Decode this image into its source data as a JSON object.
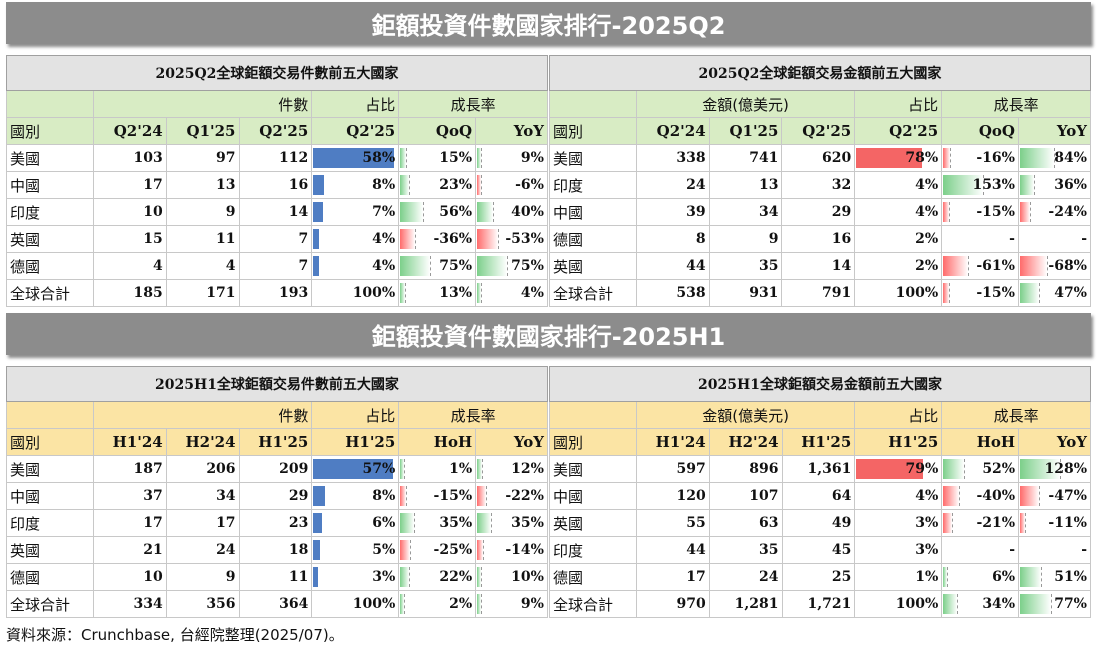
{
  "q2": {
    "title": "鉅額投資件數國家排行-2025Q2",
    "left": {
      "caption": "2025Q2全球鉅額交易件數前五大國家",
      "group_count": "件數",
      "group_share": "占比",
      "group_growth": "成長率",
      "col_country": "國別",
      "cols": [
        "Q2'24",
        "Q1'25",
        "Q2'25",
        "Q2'25",
        "QoQ",
        "YoY"
      ],
      "rows": [
        {
          "name": "美國",
          "v1": "103",
          "v2": "97",
          "v3": "112",
          "share": "58%",
          "s": 0.58,
          "g1": "15%",
          "g1n": 0.15,
          "g2": "9%",
          "g2n": 0.09
        },
        {
          "name": "中國",
          "v1": "17",
          "v2": "13",
          "v3": "16",
          "share": "8%",
          "s": 0.08,
          "g1": "23%",
          "g1n": 0.23,
          "g2": "-6%",
          "g2n": -0.06
        },
        {
          "name": "印度",
          "v1": "10",
          "v2": "9",
          "v3": "14",
          "share": "7%",
          "s": 0.07,
          "g1": "56%",
          "g1n": 0.56,
          "g2": "40%",
          "g2n": 0.4
        },
        {
          "name": "英國",
          "v1": "15",
          "v2": "11",
          "v3": "7",
          "share": "4%",
          "s": 0.04,
          "g1": "-36%",
          "g1n": -0.36,
          "g2": "-53%",
          "g2n": -0.53
        },
        {
          "name": "德國",
          "v1": "4",
          "v2": "4",
          "v3": "7",
          "share": "4%",
          "s": 0.04,
          "g1": "75%",
          "g1n": 0.75,
          "g2": "75%",
          "g2n": 0.75
        },
        {
          "name": "全球合計",
          "v1": "185",
          "v2": "171",
          "v3": "193",
          "share": "100%",
          "s": 0,
          "g1": "13%",
          "g1n": 0.13,
          "g2": "4%",
          "g2n": 0.04
        }
      ]
    },
    "right": {
      "caption": "2025Q2全球鉅額交易金額前五大國家",
      "group_count": "金額(億美元)",
      "group_share": "占比",
      "group_growth": "成長率",
      "col_country": "國別",
      "cols": [
        "Q2'24",
        "Q1'25",
        "Q2'25",
        "Q2'25",
        "QoQ",
        "YoY"
      ],
      "rows": [
        {
          "name": "美國",
          "v1": "338",
          "v2": "741",
          "v3": "620",
          "share": "78%",
          "s": 0.78,
          "g1": "-16%",
          "g1n": -0.16,
          "g2": "84%",
          "g2n": 0.84
        },
        {
          "name": "印度",
          "v1": "24",
          "v2": "13",
          "v3": "32",
          "share": "4%",
          "s": 0,
          "g1": "153%",
          "g1n": 1.53,
          "g2": "36%",
          "g2n": 0.36
        },
        {
          "name": "中國",
          "v1": "39",
          "v2": "34",
          "v3": "29",
          "share": "4%",
          "s": 0,
          "g1": "-15%",
          "g1n": -0.15,
          "g2": "-24%",
          "g2n": -0.24
        },
        {
          "name": "德國",
          "v1": "8",
          "v2": "9",
          "v3": "16",
          "share": "2%",
          "s": 0,
          "g1": "-",
          "g1n": 0,
          "g2": "-",
          "g2n": 0
        },
        {
          "name": "英國",
          "v1": "44",
          "v2": "35",
          "v3": "14",
          "share": "2%",
          "s": 0,
          "g1": "-61%",
          "g1n": -0.61,
          "g2": "-68%",
          "g2n": -0.68
        },
        {
          "name": "全球合計",
          "v1": "538",
          "v2": "931",
          "v3": "791",
          "share": "100%",
          "s": 0,
          "g1": "-15%",
          "g1n": -0.15,
          "g2": "47%",
          "g2n": 0.47
        }
      ]
    }
  },
  "h1": {
    "title": "鉅額投資件數國家排行-2025H1",
    "left": {
      "caption": "2025H1全球鉅額交易件數前五大國家",
      "group_count": "件數",
      "group_share": "占比",
      "group_growth": "成長率",
      "col_country": "國別",
      "cols": [
        "H1'24",
        "H2'24",
        "H1'25",
        "H1'25",
        "HoH",
        "YoY"
      ],
      "rows": [
        {
          "name": "美國",
          "v1": "187",
          "v2": "206",
          "v3": "209",
          "share": "57%",
          "s": 0.57,
          "g1": "1%",
          "g1n": 0.01,
          "g2": "12%",
          "g2n": 0.12
        },
        {
          "name": "中國",
          "v1": "37",
          "v2": "34",
          "v3": "29",
          "share": "8%",
          "s": 0.08,
          "g1": "-15%",
          "g1n": -0.15,
          "g2": "-22%",
          "g2n": -0.22
        },
        {
          "name": "印度",
          "v1": "17",
          "v2": "17",
          "v3": "23",
          "share": "6%",
          "s": 0.06,
          "g1": "35%",
          "g1n": 0.35,
          "g2": "35%",
          "g2n": 0.35
        },
        {
          "name": "英國",
          "v1": "21",
          "v2": "24",
          "v3": "18",
          "share": "5%",
          "s": 0.05,
          "g1": "-25%",
          "g1n": -0.25,
          "g2": "-14%",
          "g2n": -0.14
        },
        {
          "name": "德國",
          "v1": "10",
          "v2": "9",
          "v3": "11",
          "share": "3%",
          "s": 0.03,
          "g1": "22%",
          "g1n": 0.22,
          "g2": "10%",
          "g2n": 0.1
        },
        {
          "name": "全球合計",
          "v1": "334",
          "v2": "356",
          "v3": "364",
          "share": "100%",
          "s": 0,
          "g1": "2%",
          "g1n": 0.02,
          "g2": "9%",
          "g2n": 0.09
        }
      ]
    },
    "right": {
      "caption": "2025H1全球鉅額交易金額前五大國家",
      "group_count": "金額(億美元)",
      "group_share": "占比",
      "group_growth": "成長率",
      "col_country": "國別",
      "cols": [
        "H1'24",
        "H2'24",
        "H1'25",
        "H1'25",
        "HoH",
        "YoY"
      ],
      "rows": [
        {
          "name": "美國",
          "v1": "597",
          "v2": "896",
          "v3": "1,361",
          "share": "79%",
          "s": 0.79,
          "g1": "52%",
          "g1n": 0.52,
          "g2": "128%",
          "g2n": 1.28
        },
        {
          "name": "中國",
          "v1": "120",
          "v2": "107",
          "v3": "64",
          "share": "4%",
          "s": 0,
          "g1": "-40%",
          "g1n": -0.4,
          "g2": "-47%",
          "g2n": -0.47
        },
        {
          "name": "英國",
          "v1": "55",
          "v2": "63",
          "v3": "49",
          "share": "3%",
          "s": 0,
          "g1": "-21%",
          "g1n": -0.21,
          "g2": "-11%",
          "g2n": -0.11
        },
        {
          "name": "印度",
          "v1": "44",
          "v2": "35",
          "v3": "45",
          "share": "3%",
          "s": 0,
          "g1": "-",
          "g1n": 0,
          "g2": "-",
          "g2n": 0
        },
        {
          "name": "德國",
          "v1": "17",
          "v2": "24",
          "v3": "25",
          "share": "1%",
          "s": 0,
          "g1": "6%",
          "g1n": 0.06,
          "g2": "51%",
          "g2n": 0.51
        },
        {
          "name": "全球合計",
          "v1": "970",
          "v2": "1,281",
          "v3": "1,721",
          "share": "100%",
          "s": 0,
          "g1": "34%",
          "g1n": 0.34,
          "g2": "77%",
          "g2n": 0.77
        }
      ]
    }
  },
  "source": "資料來源：Crunchbase, 台經院整理(2025/07)。"
}
